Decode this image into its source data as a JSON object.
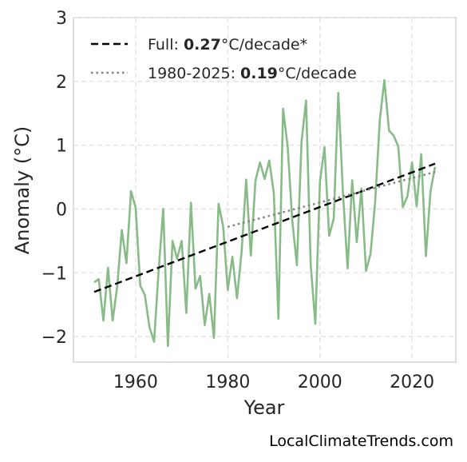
{
  "chart_data": {
    "type": "line",
    "xlabel": "Year",
    "ylabel": "Anomaly (°C)",
    "xlim": [
      1946.5,
      2029.5
    ],
    "ylim": [
      -2.4,
      3.0
    ],
    "xticks": [
      "1960",
      "1980",
      "2000",
      "2020"
    ],
    "yticks": [
      "−2",
      "−1",
      "0",
      "1",
      "2",
      "3"
    ],
    "grid": true,
    "legend_position": "top-left",
    "series": [
      {
        "style": "solid",
        "color": "#88bb88",
        "x": [
          1951,
          1952,
          1953,
          1954,
          1955,
          1956,
          1957,
          1958,
          1959,
          1960,
          1961,
          1962,
          1963,
          1964,
          1965,
          1966,
          1967,
          1968,
          1969,
          1970,
          1971,
          1972,
          1973,
          1974,
          1975,
          1976,
          1977,
          1978,
          1979,
          1980,
          1981,
          1982,
          1983,
          1984,
          1985,
          1986,
          1987,
          1988,
          1989,
          1990,
          1991,
          1992,
          1993,
          1994,
          1995,
          1996,
          1997,
          1998,
          1999,
          2000,
          2001,
          2002,
          2003,
          2004,
          2005,
          2006,
          2007,
          2008,
          2009,
          2010,
          2011,
          2012,
          2013,
          2014,
          2015,
          2016,
          2017,
          2018,
          2019,
          2020,
          2021,
          2022,
          2023,
          2024,
          2025
        ],
        "values": [
          -1.15,
          -1.1,
          -1.75,
          -0.92,
          -1.75,
          -1.22,
          -0.33,
          -0.85,
          0.28,
          0.02,
          -1.2,
          -1.35,
          -1.85,
          -2.08,
          -0.95,
          0.0,
          -2.15,
          -0.5,
          -0.78,
          -0.5,
          -1.63,
          0.1,
          -1.25,
          -1.05,
          -1.82,
          -1.33,
          -2.02,
          0.08,
          -0.28,
          -1.27,
          -0.75,
          -1.4,
          -0.68,
          0.46,
          -0.73,
          0.44,
          0.73,
          0.47,
          0.76,
          0.25,
          -1.72,
          1.57,
          0.97,
          -0.18,
          -0.88,
          1.05,
          1.7,
          -0.87,
          -1.8,
          0.43,
          0.97,
          -0.42,
          -0.15,
          1.82,
          0.25,
          -0.93,
          0.45,
          -0.52,
          0.32,
          -0.97,
          -0.7,
          0.12,
          1.4,
          2.02,
          1.23,
          1.15,
          0.98,
          0.03,
          0.2,
          0.73,
          0.04,
          0.86,
          -0.74,
          0.28,
          0.66
        ]
      },
      {
        "name": "Full",
        "style": "dashed",
        "color": "#000000",
        "x": [
          1951,
          2025
        ],
        "values": [
          -1.3,
          0.71
        ],
        "trend_rate": "0.27",
        "trend_unit": "°C/decade*"
      },
      {
        "name": "1980-2025",
        "style": "dotted",
        "color": "#808080",
        "x": [
          1980,
          2025
        ],
        "values": [
          -0.28,
          0.58
        ],
        "trend_rate": "0.19",
        "trend_unit": "°C/decade"
      }
    ]
  },
  "legend": {
    "full_prefix": "Full: ",
    "full_rate": "0.27",
    "full_unit": "°C/decade*",
    "recent_prefix": "1980-2025: ",
    "recent_rate": "0.19",
    "recent_unit": "°C/decade"
  },
  "watermark": "LocalClimateTrends.com"
}
